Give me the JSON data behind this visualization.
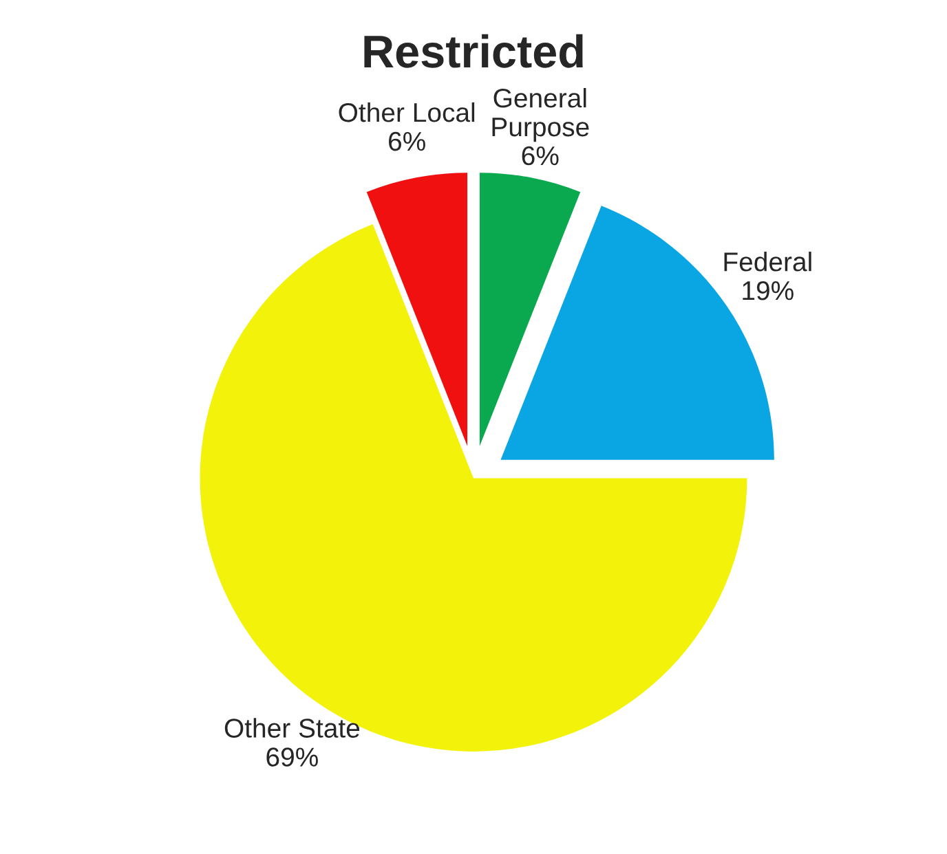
{
  "chart_data": {
    "type": "pie",
    "title": "Restricted",
    "categories": [
      "General\nPurpose",
      "Federal",
      "Other State",
      "Other Local"
    ],
    "values": [
      6,
      19,
      69,
      6
    ],
    "value_labels": [
      "6%",
      "19%",
      "69%",
      "6%"
    ],
    "colors": [
      "#0aa84f",
      "#0aa5e3",
      "#f2f20a",
      "#f01010"
    ]
  }
}
